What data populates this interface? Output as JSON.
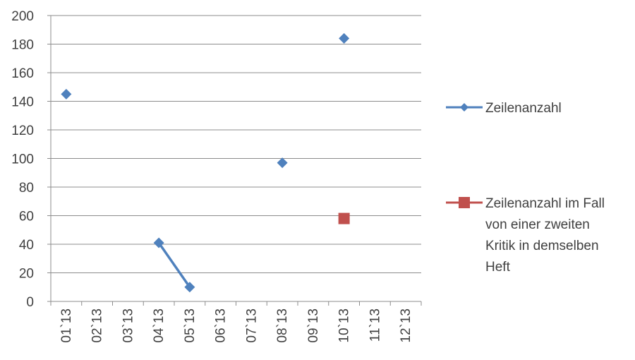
{
  "chart_data": {
    "type": "line",
    "categories": [
      "01`13",
      "02`13",
      "03`13",
      "04`13",
      "05`13",
      "06`13",
      "07`13",
      "08`13",
      "09`13",
      "10`13",
      "11`13",
      "12`13"
    ],
    "ylim": [
      0,
      200
    ],
    "yticks": [
      0,
      20,
      40,
      60,
      80,
      100,
      120,
      140,
      160,
      180,
      200
    ],
    "grid": true,
    "legend_position": "right",
    "series": [
      {
        "name": "Zeilenanzahl",
        "color": "#4F81BD",
        "marker": "diamond",
        "values": [
          145,
          null,
          null,
          41,
          10,
          null,
          null,
          97,
          null,
          184,
          null,
          null
        ]
      },
      {
        "name": "Zeilenanzahl im Fall von einer zweiten Kritik in demselben Heft",
        "legend_lines": [
          "Zeilenanzahl im Fall",
          "von einer zweiten",
          "Kritik in demselben",
          "Heft"
        ],
        "color": "#C0504D",
        "marker": "square",
        "values": [
          null,
          null,
          null,
          null,
          null,
          null,
          null,
          null,
          null,
          58,
          null,
          null
        ]
      }
    ]
  }
}
